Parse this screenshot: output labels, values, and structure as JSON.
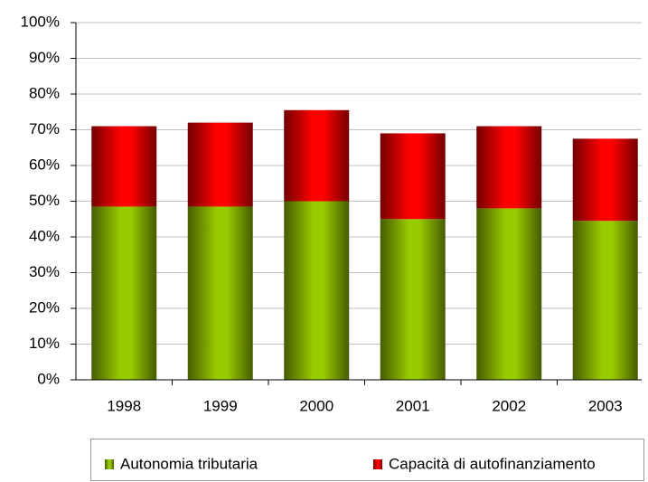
{
  "chart_data": {
    "type": "stacked_bar",
    "categories": [
      "1998",
      "1999",
      "2000",
      "2001",
      "2002",
      "2003"
    ],
    "series": [
      {
        "name": "Autonomia tributaria",
        "color": "#99cc00",
        "values": [
          48.5,
          48.5,
          50,
          45,
          48,
          44.5
        ]
      },
      {
        "name": "Capacità di autofinanziamento",
        "color": "#ff0000",
        "values": [
          22.5,
          23.5,
          25.5,
          24,
          23,
          23
        ]
      }
    ],
    "ylim": [
      0,
      100
    ],
    "yticks": [
      {
        "value": 0,
        "label": "0%"
      },
      {
        "value": 10,
        "label": "10%"
      },
      {
        "value": 20,
        "label": "20%"
      },
      {
        "value": 30,
        "label": "30%"
      },
      {
        "value": 40,
        "label": "40%"
      },
      {
        "value": 50,
        "label": "50%"
      },
      {
        "value": 60,
        "label": "60%"
      },
      {
        "value": 70,
        "label": "70%"
      },
      {
        "value": 80,
        "label": "80%"
      },
      {
        "value": 90,
        "label": "90%"
      },
      {
        "value": 100,
        "label": "100%"
      }
    ],
    "grid": true,
    "legend": "bottom"
  }
}
